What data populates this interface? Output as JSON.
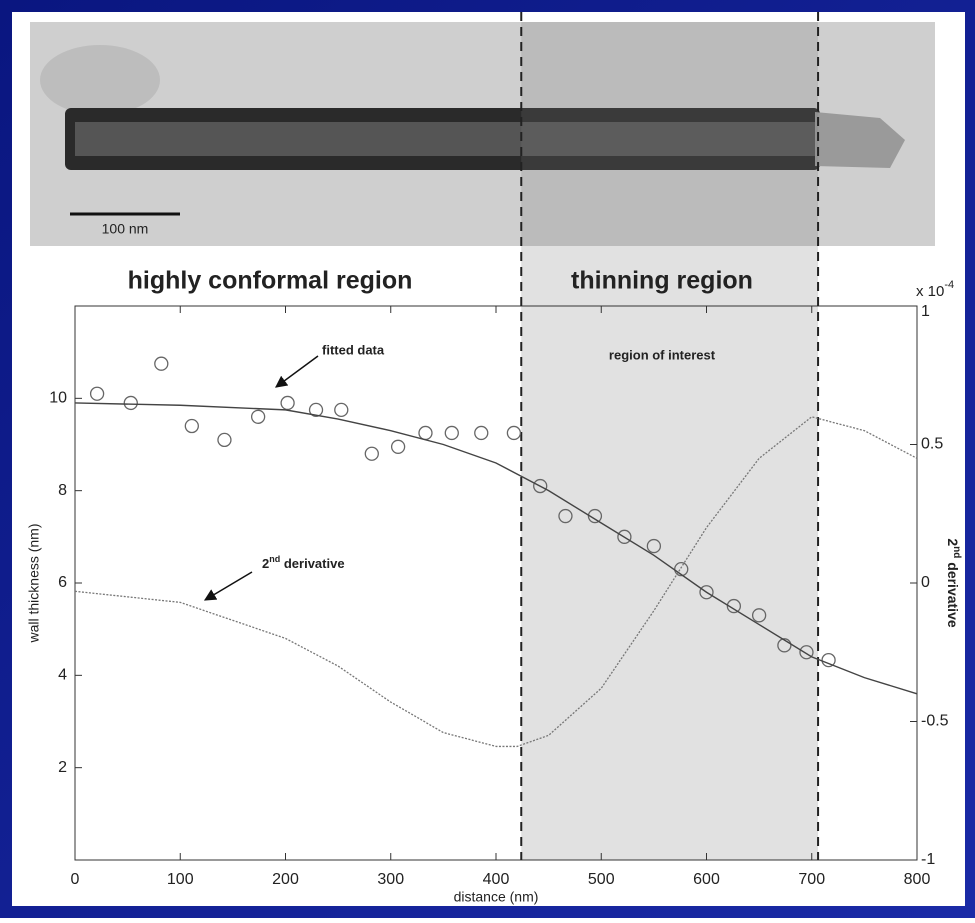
{
  "micrograph": {
    "scale_bar_label": "100 nm"
  },
  "chart_data": {
    "type": "scatter",
    "x_label": "distance (nm)",
    "y_label": "wall thickness (nm)",
    "y2_label": {
      "base": "2",
      "sup": "nd",
      "rest": " derivative"
    },
    "y2_multiplier": {
      "base": "x 10",
      "sup": "-4"
    },
    "xlim": [
      0,
      800
    ],
    "xticks": [
      0,
      100,
      200,
      300,
      400,
      500,
      600,
      700,
      800
    ],
    "ylim": [
      0,
      12
    ],
    "yticks": [
      2,
      4,
      6,
      8,
      10
    ],
    "y2lim": [
      -1,
      1
    ],
    "y2ticks": [
      -1,
      -0.5,
      0,
      0.5,
      1
    ],
    "regions": [
      {
        "label": "highly conformal region"
      },
      {
        "label": "thinning region",
        "note": "region of interest",
        "range": [
          424,
          706
        ]
      }
    ],
    "annotations": [
      {
        "text": "fitted data"
      },
      {
        "base": "2",
        "sup": "nd",
        "rest": " derivative"
      }
    ],
    "series": [
      {
        "type": "scatter",
        "color": "#666666",
        "x": [
          21,
          53,
          82,
          111,
          142,
          174,
          202,
          229,
          253,
          282,
          307,
          333,
          358,
          386,
          417,
          442,
          466,
          494,
          522,
          550,
          576,
          600,
          626,
          650,
          674,
          695,
          716
        ],
        "values": [
          10.1,
          9.9,
          10.75,
          9.4,
          9.1,
          9.6,
          9.9,
          9.75,
          9.75,
          8.8,
          8.95,
          9.25,
          9.25,
          9.25,
          9.25,
          8.1,
          7.45,
          7.45,
          7.0,
          6.8,
          6.3,
          5.8,
          5.5,
          5.3,
          4.65,
          4.5,
          4.33
        ]
      },
      {
        "type": "line",
        "color": "#444444",
        "x": [
          0,
          100,
          200,
          250,
          300,
          350,
          400,
          450,
          500,
          550,
          600,
          650,
          700,
          750,
          800
        ],
        "values": [
          9.9,
          9.85,
          9.75,
          9.55,
          9.3,
          9.0,
          8.6,
          8.0,
          7.3,
          6.6,
          5.8,
          5.1,
          4.4,
          3.95,
          3.6
        ]
      },
      {
        "type": "line",
        "axis": "y2",
        "color": "#777777",
        "dash": true,
        "x": [
          0,
          100,
          200,
          250,
          300,
          350,
          400,
          420,
          450,
          500,
          550,
          600,
          650,
          700,
          750,
          800
        ],
        "values": [
          -0.03,
          -0.07,
          -0.2,
          -0.3,
          -0.43,
          -0.54,
          -0.59,
          -0.59,
          -0.55,
          -0.38,
          -0.1,
          0.2,
          0.45,
          0.6,
          0.55,
          0.45
        ]
      }
    ]
  }
}
